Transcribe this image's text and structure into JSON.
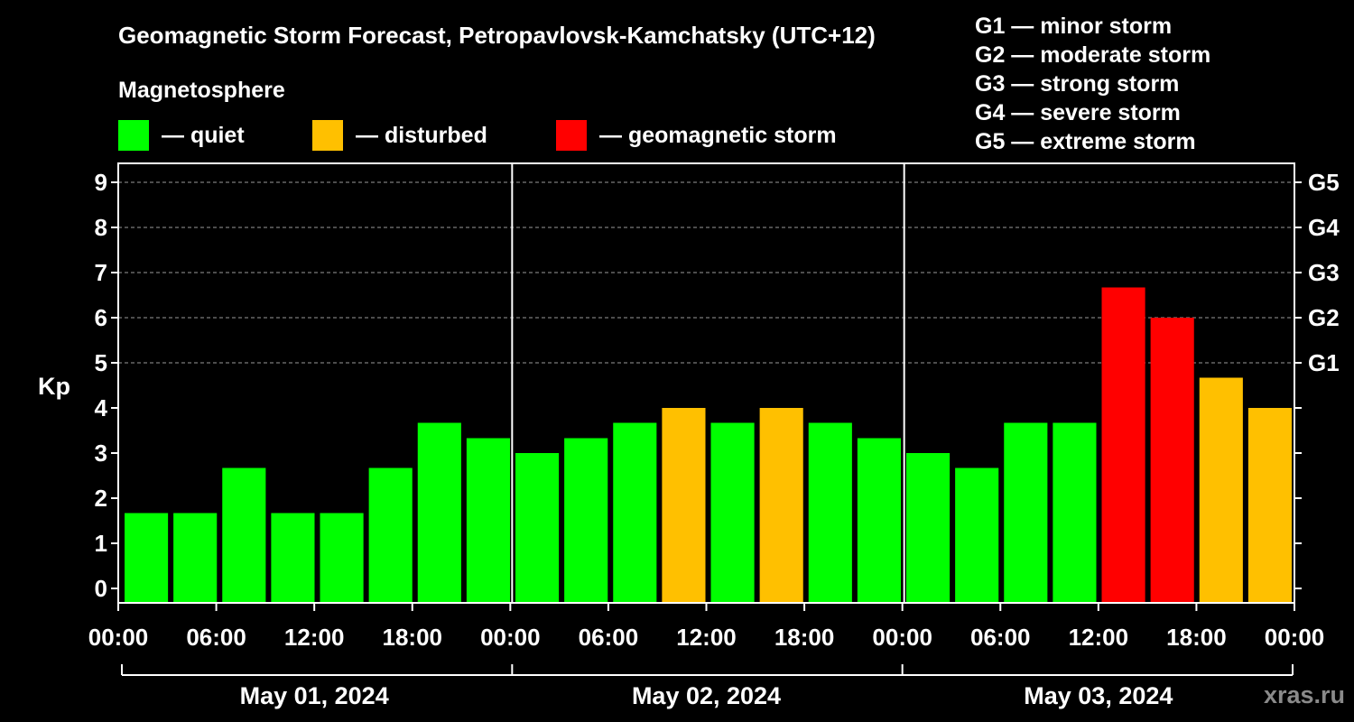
{
  "title": "Geomagnetic Storm Forecast, Petropavlovsk-Kamchatsky (UTC+12)",
  "legend": {
    "title": "Magnetosphere",
    "items": [
      {
        "label": "— quiet",
        "color": "#00ff00"
      },
      {
        "label": "— disturbed",
        "color": "#ffc000"
      },
      {
        "label": "— geomagnetic storm",
        "color": "#ff0000"
      }
    ]
  },
  "g_scale": [
    "G1 — minor storm",
    "G2 — moderate storm",
    "G3 — strong storm",
    "G4 — severe storm",
    "G5 — extreme storm"
  ],
  "watermark": "xras.ru",
  "chart_data": {
    "type": "bar",
    "ylabel": "Kp",
    "ylim": [
      0,
      9
    ],
    "yticks": [
      "0",
      "1",
      "2",
      "3",
      "4",
      "5",
      "6",
      "7",
      "8",
      "9"
    ],
    "right_axis": [
      {
        "label": "G1",
        "kp": 5
      },
      {
        "label": "G2",
        "kp": 6
      },
      {
        "label": "G3",
        "kp": 7
      },
      {
        "label": "G4",
        "kp": 8
      },
      {
        "label": "G5",
        "kp": 9
      }
    ],
    "x_tick_labels": [
      "00:00",
      "06:00",
      "12:00",
      "18:00",
      "00:00",
      "06:00",
      "12:00",
      "18:00",
      "00:00",
      "06:00",
      "12:00",
      "18:00",
      "00:00"
    ],
    "days": [
      "May 01, 2024",
      "May 02, 2024",
      "May 03, 2024"
    ],
    "grid": "horizontal dashed at G-levels",
    "colors": {
      "quiet": "#00ff00",
      "disturbed": "#ffc000",
      "storm": "#ff0000"
    },
    "series": [
      {
        "values": [
          1.67,
          1.67,
          2.67,
          1.67,
          1.67,
          2.67,
          3.67,
          3.33,
          3.0,
          3.33,
          3.67,
          4.0,
          3.67,
          4.0,
          3.67,
          3.33,
          3.0,
          2.67,
          3.67,
          3.67,
          6.67,
          6.0,
          4.67,
          4.0
        ],
        "status": [
          "quiet",
          "quiet",
          "quiet",
          "quiet",
          "quiet",
          "quiet",
          "quiet",
          "quiet",
          "quiet",
          "quiet",
          "quiet",
          "disturbed",
          "quiet",
          "disturbed",
          "quiet",
          "quiet",
          "quiet",
          "quiet",
          "quiet",
          "quiet",
          "storm",
          "storm",
          "disturbed",
          "disturbed"
        ]
      }
    ]
  }
}
